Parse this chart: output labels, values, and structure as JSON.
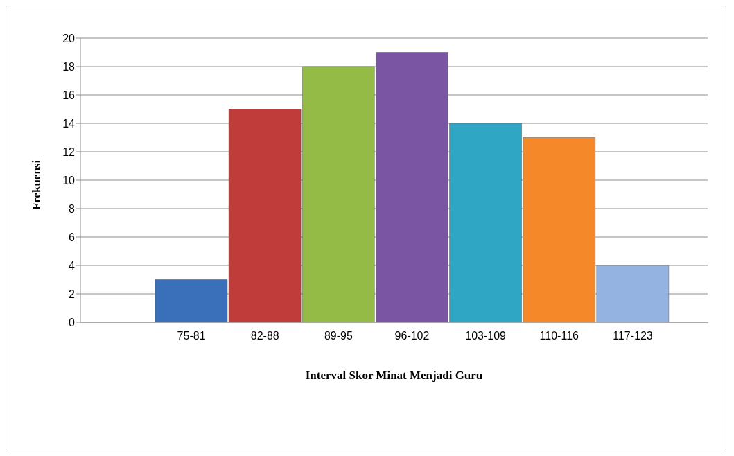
{
  "chart_data": {
    "type": "bar",
    "categories": [
      "75-81",
      "82-88",
      "89-95",
      "96-102",
      "103-109",
      "110-116",
      "117-123"
    ],
    "values": [
      3,
      15,
      18,
      19,
      14,
      13,
      4
    ],
    "colors": [
      "#3a6fba",
      "#c03c3a",
      "#93bb45",
      "#7a55a3",
      "#2fa6c4",
      "#f5892a",
      "#94b3e0"
    ],
    "xlabel": "Interval Skor Minat Menjadi Guru",
    "ylabel": "Frekuensi",
    "ylim": [
      0,
      20
    ],
    "yticks": [
      0,
      2,
      4,
      6,
      8,
      10,
      12,
      14,
      16,
      18,
      20
    ],
    "grid": "y"
  }
}
